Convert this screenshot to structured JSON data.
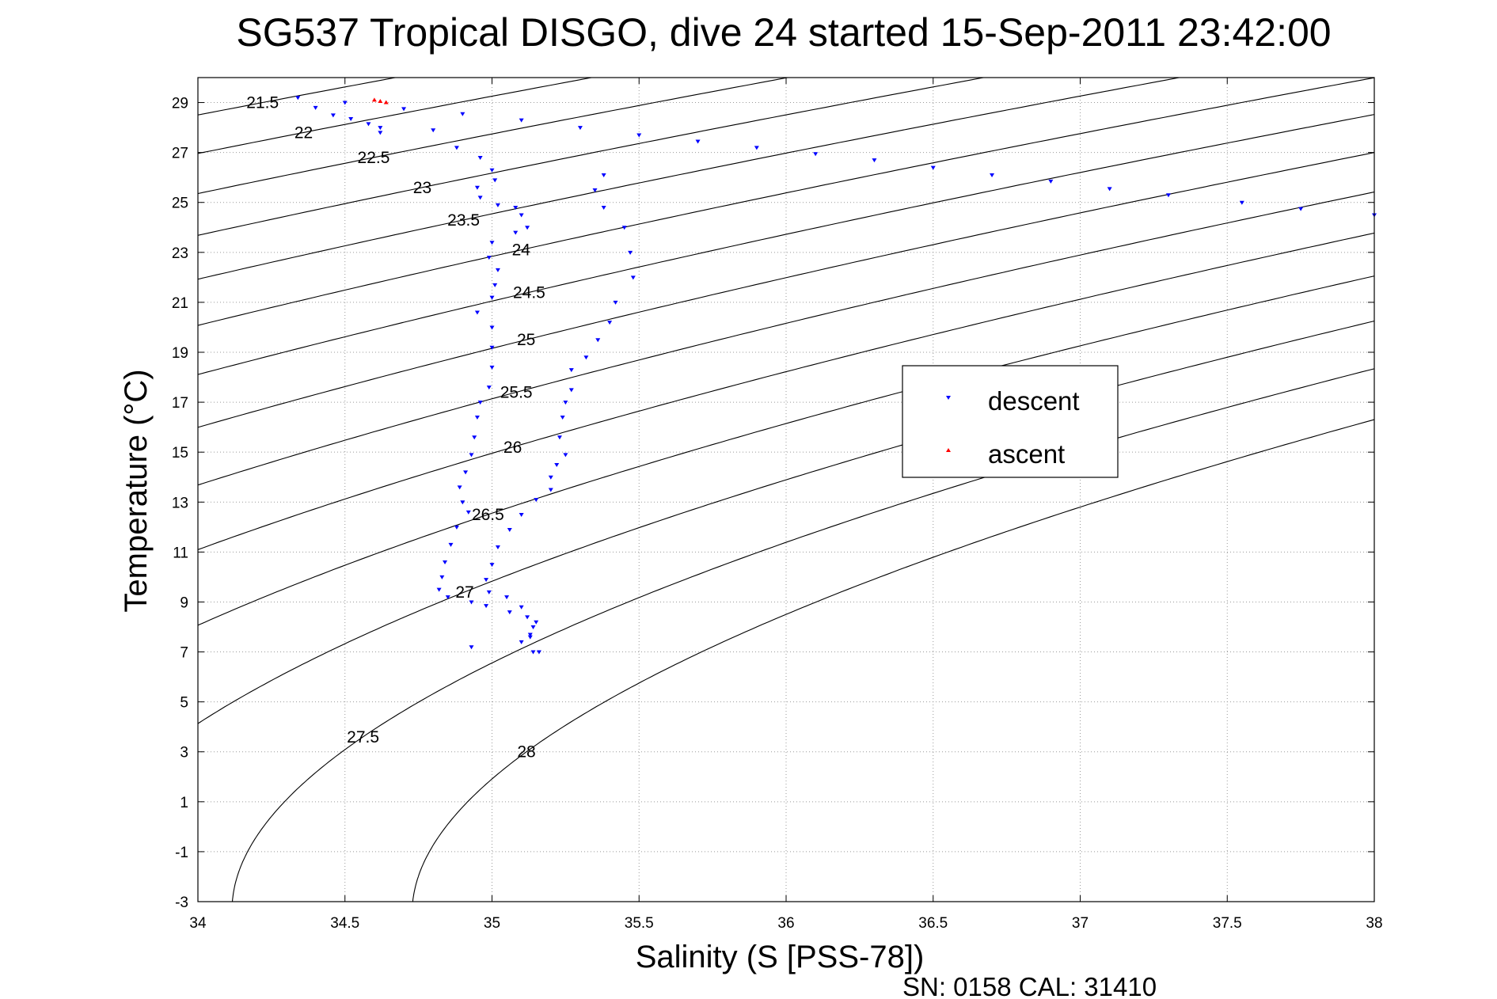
{
  "chart_data": {
    "type": "scatter",
    "title": "SG537 Tropical DISGO, dive 24 started 15-Sep-2011 23:42:00",
    "xlabel": "Salinity (S [PSS-78])",
    "ylabel": "Temperature (°C)",
    "xlim": [
      34,
      38
    ],
    "ylim": [
      -3,
      30
    ],
    "x_ticks": [
      "34",
      "34.5",
      "35",
      "35.5",
      "36",
      "36.5",
      "37",
      "37.5",
      "38"
    ],
    "y_ticks": [
      "-3",
      "-1",
      "1",
      "3",
      "5",
      "7",
      "9",
      "11",
      "13",
      "15",
      "17",
      "19",
      "21",
      "23",
      "25",
      "27",
      "29"
    ],
    "grid": true,
    "legend_position": "center-right",
    "contour_levels": [
      21.5,
      22,
      22.5,
      23,
      23.5,
      24,
      24.5,
      25,
      25.5,
      26,
      26.5,
      27,
      27.5,
      28
    ],
    "series": [
      {
        "name": "descent",
        "color": "#0000ff",
        "marker": "triangle-down",
        "points": [
          [
            34.34,
            29.2
          ],
          [
            34.4,
            28.8
          ],
          [
            34.46,
            28.5
          ],
          [
            34.52,
            28.35
          ],
          [
            34.58,
            28.15
          ],
          [
            34.62,
            28.0
          ],
          [
            34.62,
            27.8
          ],
          [
            34.8,
            27.9
          ],
          [
            34.88,
            27.2
          ],
          [
            34.96,
            26.8
          ],
          [
            35.0,
            26.3
          ],
          [
            35.01,
            25.9
          ],
          [
            34.95,
            25.6
          ],
          [
            34.96,
            25.2
          ],
          [
            35.02,
            24.9
          ],
          [
            35.08,
            24.8
          ],
          [
            35.1,
            24.5
          ],
          [
            35.12,
            24.0
          ],
          [
            35.08,
            23.8
          ],
          [
            35.0,
            23.4
          ],
          [
            34.99,
            22.8
          ],
          [
            35.02,
            22.3
          ],
          [
            35.01,
            21.7
          ],
          [
            35.0,
            21.2
          ],
          [
            34.95,
            20.6
          ],
          [
            35.0,
            20.0
          ],
          [
            35.0,
            19.2
          ],
          [
            35.0,
            18.4
          ],
          [
            34.99,
            17.6
          ],
          [
            34.96,
            17.0
          ],
          [
            34.95,
            16.4
          ],
          [
            34.94,
            15.6
          ],
          [
            34.93,
            14.9
          ],
          [
            34.91,
            14.2
          ],
          [
            34.89,
            13.6
          ],
          [
            34.9,
            13.0
          ],
          [
            34.92,
            12.6
          ],
          [
            34.88,
            12.0
          ],
          [
            34.86,
            11.3
          ],
          [
            34.84,
            10.6
          ],
          [
            34.83,
            10.0
          ],
          [
            34.82,
            9.5
          ],
          [
            34.85,
            9.2
          ],
          [
            34.93,
            9.0
          ],
          [
            34.98,
            8.85
          ],
          [
            35.06,
            8.6
          ],
          [
            35.12,
            8.4
          ],
          [
            35.14,
            8.0
          ],
          [
            35.13,
            7.7
          ],
          [
            35.1,
            7.4
          ],
          [
            35.14,
            7.0
          ],
          [
            34.93,
            7.2
          ]
        ]
      },
      {
        "name": "",
        "color": "#0000ff",
        "marker": "triangle-down",
        "points": [
          [
            34.5,
            29.0
          ],
          [
            34.7,
            28.75
          ],
          [
            34.9,
            28.55
          ],
          [
            35.1,
            28.3
          ],
          [
            35.3,
            28.0
          ],
          [
            35.5,
            27.7
          ],
          [
            35.7,
            27.45
          ],
          [
            35.9,
            27.2
          ],
          [
            36.1,
            26.95
          ],
          [
            36.3,
            26.7
          ],
          [
            36.5,
            26.4
          ],
          [
            36.7,
            26.1
          ],
          [
            36.9,
            25.85
          ],
          [
            37.1,
            25.55
          ],
          [
            37.3,
            25.3
          ],
          [
            37.55,
            25.0
          ],
          [
            37.75,
            24.75
          ],
          [
            38.0,
            24.5
          ],
          [
            35.38,
            26.1
          ],
          [
            35.35,
            25.5
          ],
          [
            35.38,
            24.8
          ],
          [
            35.45,
            24.0
          ],
          [
            35.47,
            23.0
          ],
          [
            35.48,
            22.0
          ],
          [
            35.42,
            21.0
          ],
          [
            35.4,
            20.2
          ],
          [
            35.36,
            19.5
          ],
          [
            35.32,
            18.8
          ],
          [
            35.27,
            18.3
          ],
          [
            35.27,
            17.5
          ],
          [
            35.25,
            17.0
          ],
          [
            35.24,
            16.4
          ],
          [
            35.23,
            15.6
          ],
          [
            35.25,
            14.9
          ],
          [
            35.22,
            14.5
          ],
          [
            35.2,
            14.0
          ],
          [
            35.2,
            13.5
          ],
          [
            35.15,
            13.1
          ],
          [
            35.1,
            12.5
          ],
          [
            35.06,
            11.9
          ],
          [
            35.02,
            11.2
          ],
          [
            35.0,
            10.5
          ],
          [
            34.98,
            9.9
          ],
          [
            34.99,
            9.4
          ],
          [
            35.05,
            9.2
          ],
          [
            35.1,
            8.8
          ],
          [
            35.15,
            8.2
          ],
          [
            35.13,
            7.6
          ],
          [
            35.16,
            7.0
          ]
        ]
      },
      {
        "name": "ascent",
        "color": "#ff0000",
        "marker": "triangle-up",
        "points": [
          [
            34.6,
            29.1
          ],
          [
            34.62,
            29.05
          ],
          [
            34.64,
            29.0
          ]
        ]
      }
    ]
  },
  "legend": {
    "descent_label": "descent",
    "ascent_label": "ascent"
  },
  "footer": {
    "serial_text": "SN: 0158  CAL: 31410"
  }
}
